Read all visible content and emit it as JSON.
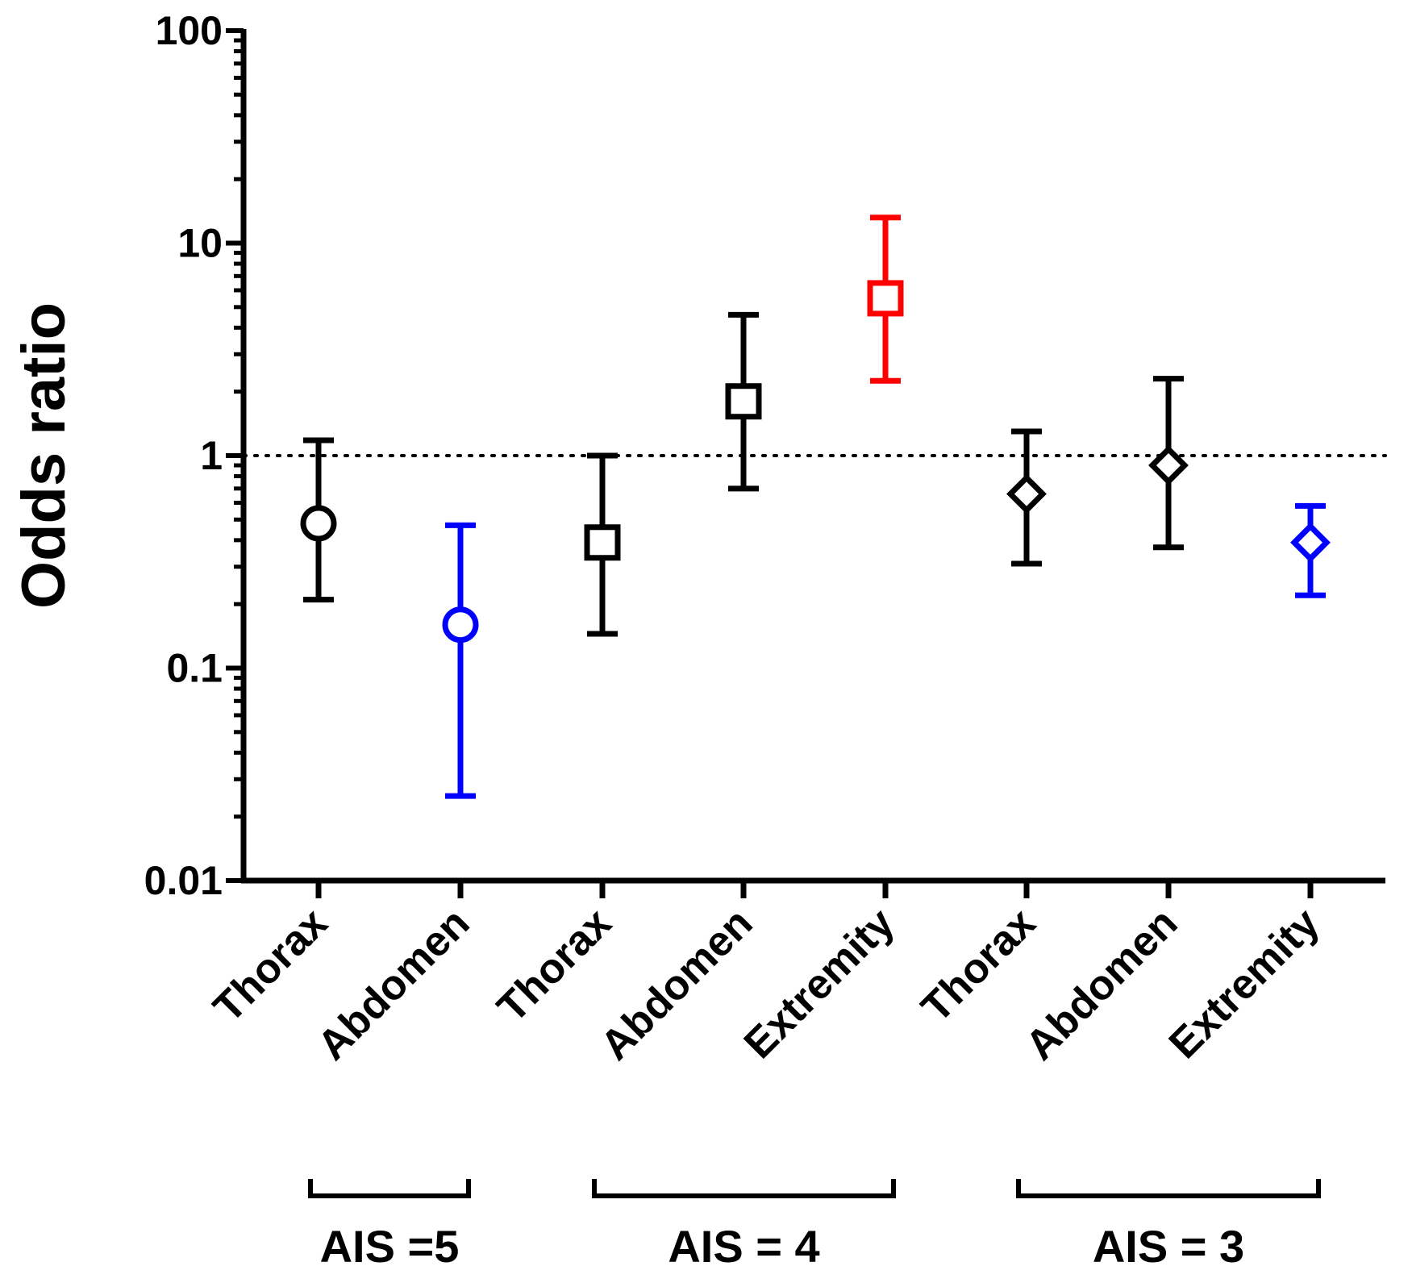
{
  "chart_data": {
    "type": "scatter",
    "ylabel": "Odds ratio",
    "yscale": "log",
    "ylim": [
      0.01,
      100
    ],
    "y_ticks": [
      "100",
      "10",
      "1",
      "0.1",
      "0.01"
    ],
    "y_tick_values": [
      100,
      10,
      1,
      0.1,
      0.01
    ],
    "reference_line": 1,
    "categories": [
      "Thorax",
      "Abdomen",
      "Thorax",
      "Abdomen",
      "Extremity",
      "Thorax",
      "Abdomen",
      "Extremity"
    ],
    "points": [
      {
        "category": "Thorax",
        "group": "AIS =5",
        "or": 0.48,
        "lower": 0.21,
        "upper": 1.18,
        "marker": "circle",
        "color": "#000000"
      },
      {
        "category": "Abdomen",
        "group": "AIS =5",
        "or": 0.16,
        "lower": 0.025,
        "upper": 0.47,
        "marker": "circle",
        "color": "#0000ff"
      },
      {
        "category": "Thorax",
        "group": "AIS = 4",
        "or": 0.39,
        "lower": 0.145,
        "upper": 1.0,
        "marker": "square",
        "color": "#000000"
      },
      {
        "category": "Abdomen",
        "group": "AIS = 4",
        "or": 1.8,
        "lower": 0.7,
        "upper": 4.6,
        "marker": "square",
        "color": "#000000"
      },
      {
        "category": "Extremity",
        "group": "AIS = 4",
        "or": 5.5,
        "lower": 2.25,
        "upper": 13.2,
        "marker": "square",
        "color": "#ff0000"
      },
      {
        "category": "Thorax",
        "group": "AIS = 3",
        "or": 0.66,
        "lower": 0.31,
        "upper": 1.3,
        "marker": "diamond",
        "color": "#000000"
      },
      {
        "category": "Abdomen",
        "group": "AIS = 3",
        "or": 0.9,
        "lower": 0.37,
        "upper": 2.3,
        "marker": "diamond",
        "color": "#000000"
      },
      {
        "category": "Extremity",
        "group": "AIS = 3",
        "or": 0.39,
        "lower": 0.22,
        "upper": 0.58,
        "marker": "diamond",
        "color": "#0000ff"
      }
    ],
    "groups": [
      {
        "label": "AIS =5",
        "first": 0,
        "last": 1
      },
      {
        "label": "AIS = 4",
        "first": 2,
        "last": 4
      },
      {
        "label": "AIS = 3",
        "first": 5,
        "last": 7
      }
    ]
  }
}
